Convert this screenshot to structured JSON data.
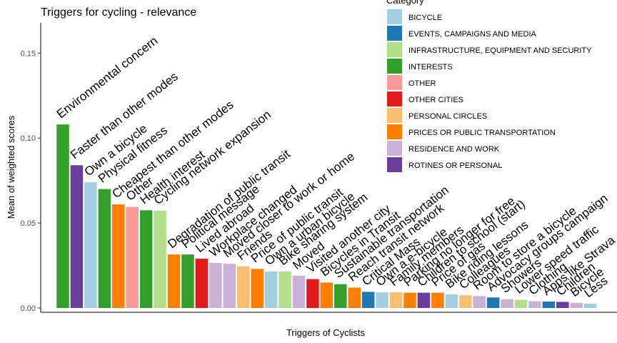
{
  "chart_data": {
    "type": "bar",
    "title": "Triggers for cycling - relevance",
    "xlabel": "Triggers of Cyclists",
    "ylabel": "Mean of weighted scores",
    "ylim": [
      0,
      0.17
    ],
    "yticks": [
      "0.00",
      "0.05",
      "0.10",
      "0.15"
    ],
    "ytick_values": [
      0,
      0.05,
      0.1,
      0.15
    ],
    "grid": false,
    "legend": {
      "title": "Category",
      "placement": "top-right",
      "entries": [
        {
          "label": "BICYCLE",
          "color": "#a6cee3"
        },
        {
          "label": "EVENTS, CAMPAIGNS AND MEDIA",
          "color": "#1f78b4"
        },
        {
          "label": "INFRASTRUCTURE, EQUIPMENT AND SECURITY",
          "color": "#b2df8a"
        },
        {
          "label": "INTERESTS",
          "color": "#33a02c"
        },
        {
          "label": "OTHER",
          "color": "#fb9a99"
        },
        {
          "label": "OTHER CITIES",
          "color": "#e31a1c"
        },
        {
          "label": "PERSONAL CIRCLES",
          "color": "#fdbf6f"
        },
        {
          "label": "PRICES OR PUBLIC TRANSPORTATION",
          "color": "#ff7f00"
        },
        {
          "label": "RESIDENCE AND WORK",
          "color": "#cab2d6"
        },
        {
          "label": "ROTINES OR PERSONAL",
          "color": "#6a3d9a"
        }
      ]
    },
    "bars": [
      {
        "label": "Environmental concern",
        "value": 0.108,
        "color": "#33a02c"
      },
      {
        "label": "Faster than other modes",
        "value": 0.084,
        "color": "#6a3d9a"
      },
      {
        "label": "Own a bicycle",
        "value": 0.074,
        "color": "#a6cee3"
      },
      {
        "label": "Physical fitness",
        "value": 0.07,
        "color": "#33a02c"
      },
      {
        "label": "Cheapest than other modes",
        "value": 0.061,
        "color": "#ff7f00"
      },
      {
        "label": "Other",
        "value": 0.0595,
        "color": "#fb9a99"
      },
      {
        "label": "Health interest",
        "value": 0.0575,
        "color": "#33a02c"
      },
      {
        "label": "Cycling network expansion",
        "value": 0.0572,
        "color": "#b2df8a"
      },
      {
        "label": "Degradation of public transit",
        "value": 0.0315,
        "color": "#ff7f00"
      },
      {
        "label": "Political message",
        "value": 0.0315,
        "color": "#33a02c"
      },
      {
        "label": "Lived abroad",
        "value": 0.029,
        "color": "#e31a1c"
      },
      {
        "label": "Workplace changed",
        "value": 0.0265,
        "color": "#cab2d6"
      },
      {
        "label": "Moved closer to work or home",
        "value": 0.026,
        "color": "#cab2d6"
      },
      {
        "label": "Friends",
        "value": 0.0245,
        "color": "#fdbf6f"
      },
      {
        "label": "Price of public transit",
        "value": 0.023,
        "color": "#ff7f00"
      },
      {
        "label": "Own a urban bicycle",
        "value": 0.0215,
        "color": "#a6cee3"
      },
      {
        "label": "Bike sharing system",
        "value": 0.0215,
        "color": "#b2df8a"
      },
      {
        "label": "Moved",
        "value": 0.019,
        "color": "#cab2d6"
      },
      {
        "label": "Visited another city",
        "value": 0.017,
        "color": "#e31a1c"
      },
      {
        "label": "Bicycles in Transit",
        "value": 0.015,
        "color": "#ff7f00"
      },
      {
        "label": "Sustainable transportation",
        "value": 0.014,
        "color": "#33a02c"
      },
      {
        "label": "Reach transit network",
        "value": 0.012,
        "color": "#ff7f00"
      },
      {
        "label": "Critical Mass",
        "value": 0.0095,
        "color": "#1f78b4"
      },
      {
        "label": "Own a e-bicycle",
        "value": 0.0092,
        "color": "#a6cee3"
      },
      {
        "label": "Family members",
        "value": 0.0092,
        "color": "#fdbf6f"
      },
      {
        "label": "Parking no longer for free",
        "value": 0.009,
        "color": "#ff7f00"
      },
      {
        "label": "Children to school (start)",
        "value": 0.009,
        "color": "#6a3d9a"
      },
      {
        "label": "Price of gas",
        "value": 0.009,
        "color": "#ff7f00"
      },
      {
        "label": "Bike riding lessons",
        "value": 0.008,
        "color": "#a6cee3"
      },
      {
        "label": "Colleagues",
        "value": 0.0075,
        "color": "#fdbf6f"
      },
      {
        "label": "Room to store a bicycle",
        "value": 0.007,
        "color": "#cab2d6"
      },
      {
        "label": "Advocacy groups campaign",
        "value": 0.0062,
        "color": "#1f78b4"
      },
      {
        "label": "Showers",
        "value": 0.0052,
        "color": "#cab2d6"
      },
      {
        "label": "Lower speed traffic",
        "value": 0.0048,
        "color": "#b2df8a"
      },
      {
        "label": "Clothing",
        "value": 0.004,
        "color": "#cab2d6"
      },
      {
        "label": "Apps like Strava",
        "value": 0.0038,
        "color": "#1f78b4"
      },
      {
        "label": "Children",
        "value": 0.0036,
        "color": "#6a3d9a"
      },
      {
        "label": "Bicycle",
        "value": 0.003,
        "color": "#cab2d6"
      },
      {
        "label": "Less",
        "value": 0.0025,
        "color": "#a6cee3"
      }
    ]
  }
}
